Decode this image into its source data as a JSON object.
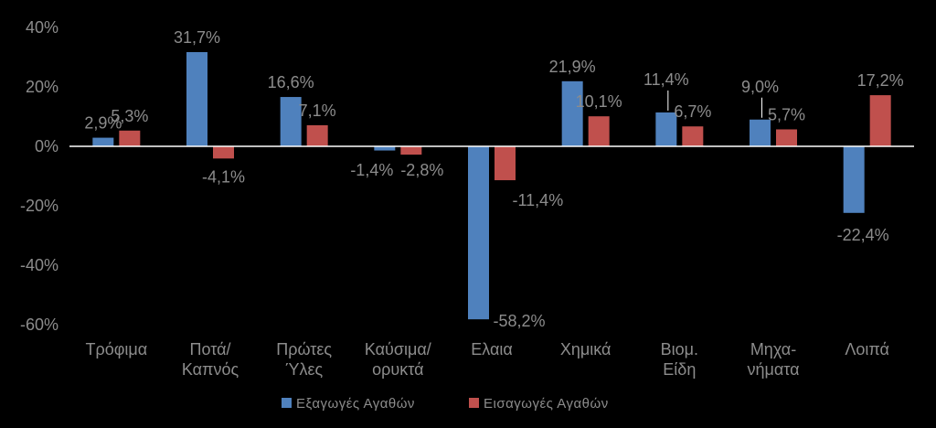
{
  "chart_data": {
    "type": "bar",
    "categories": [
      [
        "Τρόφιμα"
      ],
      [
        "Ποτά/",
        "Καπνός"
      ],
      [
        "Πρώτες",
        "Ύλες"
      ],
      [
        "Καύσιμα/",
        "ορυκτά"
      ],
      [
        "Ελαια"
      ],
      [
        "Χημικά"
      ],
      [
        "Βιομ.",
        "Είδη"
      ],
      [
        "Μηχα-",
        "νήματα"
      ],
      [
        "Λοιπά"
      ]
    ],
    "series": [
      {
        "name": "Εξαγωγές Αγαθών",
        "color": "#4f81bd",
        "values": [
          2.9,
          31.7,
          16.6,
          -1.4,
          -58.2,
          21.9,
          11.4,
          9.0,
          -22.4
        ],
        "labels": [
          "2,9%",
          "31,7%",
          "16,6%",
          "-1,4%",
          "-58,2%",
          "21,9%",
          "11,4%",
          "9,0%",
          "-22,4%"
        ]
      },
      {
        "name": "Εισαγωγές Αγαθών",
        "color": "#c0504d",
        "values": [
          5.3,
          -4.1,
          7.1,
          -2.8,
          -11.4,
          10.1,
          6.7,
          5.7,
          17.2
        ],
        "labels": [
          "5,3%",
          "-4,1%",
          "7,1%",
          "-2,8%",
          "-11,4%",
          "10,1%",
          "6,7%",
          "5,7%",
          "17,2%"
        ]
      }
    ],
    "ylim": [
      -60,
      40
    ],
    "yticks": [
      "40%",
      "20%",
      "0%",
      "-20%",
      "-40%",
      "-60%"
    ],
    "ytick_values": [
      40,
      20,
      0,
      -20,
      -40,
      -60
    ],
    "grid": false,
    "legend": "bottom"
  }
}
